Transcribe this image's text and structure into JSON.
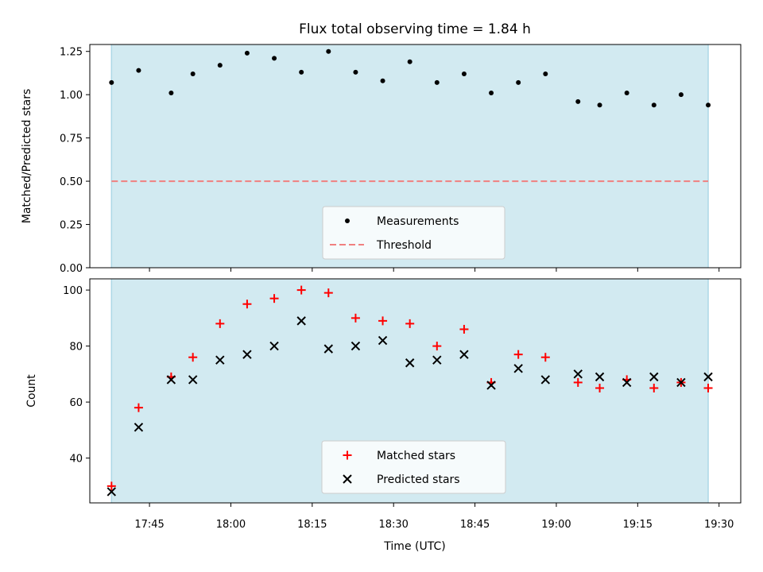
{
  "chart_data": [
    {
      "type": "scatter",
      "title": "Flux total observing time = 1.84 h",
      "ylabel": "Matched/Predicted stars",
      "ylim": [
        0,
        1.29
      ],
      "yticks": [
        "0.00",
        "0.25",
        "0.50",
        "0.75",
        "1.00",
        "1.25"
      ],
      "ytick_values": [
        0,
        0.25,
        0.5,
        0.75,
        1.0,
        1.25
      ],
      "shaded_span": [
        "17:38",
        "19:28"
      ],
      "threshold": 0.5,
      "legend": {
        "position": "bottom-center",
        "entries": [
          "Measurements",
          "Threshold"
        ]
      },
      "colors": {
        "measurements": "#000000",
        "threshold": "#f08080",
        "span": "#add8e6"
      },
      "x": [
        "17:38",
        "17:43",
        "17:49",
        "17:53",
        "17:58",
        "18:03",
        "18:08",
        "18:13",
        "18:18",
        "18:23",
        "18:28",
        "18:33",
        "18:38",
        "18:43",
        "18:48",
        "18:53",
        "18:58",
        "19:04",
        "19:08",
        "19:13",
        "19:18",
        "19:23",
        "19:28"
      ],
      "series": [
        {
          "name": "Measurements",
          "values": [
            1.07,
            1.14,
            1.01,
            1.12,
            1.17,
            1.24,
            1.21,
            1.13,
            1.25,
            1.13,
            1.08,
            1.19,
            1.07,
            1.12,
            1.01,
            1.07,
            1.12,
            0.96,
            0.94,
            1.01,
            0.94,
            1.0,
            0.94
          ]
        },
        {
          "name": "Threshold",
          "values": [
            0.5,
            0.5
          ]
        }
      ]
    },
    {
      "type": "scatter",
      "xlabel": "Time (UTC)",
      "ylabel": "Count",
      "ylim": [
        24,
        104
      ],
      "yticks": [
        "40",
        "60",
        "80",
        "100"
      ],
      "ytick_values": [
        40,
        60,
        80,
        100
      ],
      "xticks": [
        "17:45",
        "18:00",
        "18:15",
        "18:30",
        "18:45",
        "19:00",
        "19:15",
        "19:30"
      ],
      "xrange": [
        "17:34",
        "19:34"
      ],
      "shaded_span": [
        "17:38",
        "19:28"
      ],
      "legend": {
        "position": "bottom-center",
        "entries": [
          "Matched stars",
          "Predicted stars"
        ]
      },
      "colors": {
        "matched": "#ff0000",
        "predicted": "#000000",
        "span": "#add8e6"
      },
      "x": [
        "17:38",
        "17:43",
        "17:49",
        "17:53",
        "17:58",
        "18:03",
        "18:08",
        "18:13",
        "18:18",
        "18:23",
        "18:28",
        "18:33",
        "18:38",
        "18:43",
        "18:48",
        "18:53",
        "18:58",
        "19:04",
        "19:08",
        "19:13",
        "19:18",
        "19:23",
        "19:28"
      ],
      "series": [
        {
          "name": "Matched stars",
          "values": [
            30,
            58,
            69,
            76,
            88,
            95,
            97,
            100,
            99,
            90,
            89,
            88,
            80,
            86,
            67,
            77,
            76,
            67,
            65,
            68,
            65,
            67,
            65
          ]
        },
        {
          "name": "Predicted stars",
          "values": [
            28,
            51,
            68,
            68,
            75,
            77,
            80,
            89,
            79,
            80,
            82,
            74,
            75,
            77,
            66,
            72,
            68,
            70,
            69,
            67,
            69,
            67,
            69
          ]
        }
      ]
    }
  ]
}
